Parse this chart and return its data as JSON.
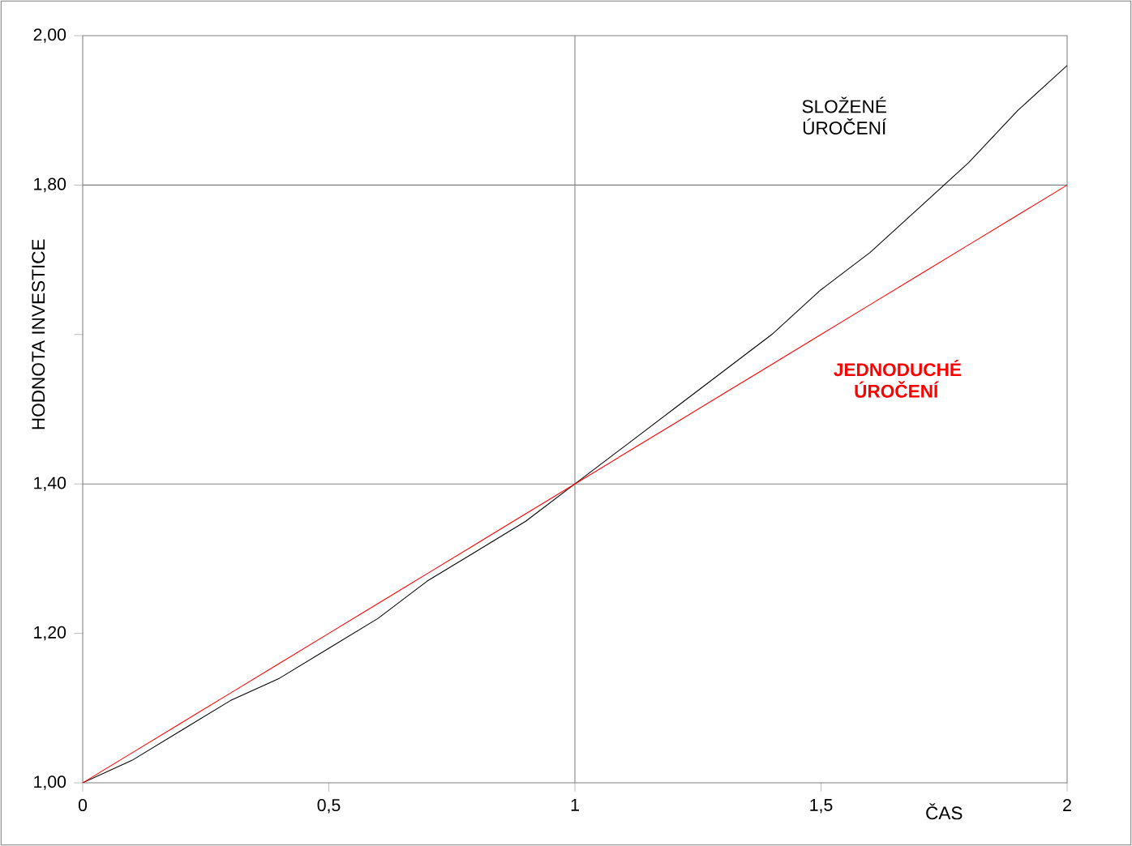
{
  "chart_data": {
    "type": "line",
    "xlabel": "ČAS",
    "ylabel": "HODNOTA INVESTICE",
    "x": [
      0,
      0.1,
      0.2,
      0.3,
      0.4,
      0.5,
      0.6,
      0.7,
      0.8,
      0.9,
      1,
      1.1,
      1.2,
      1.3,
      1.4,
      1.5,
      1.6,
      1.7,
      1.8,
      1.9,
      2
    ],
    "series": [
      {
        "name": "SLOŽENÉ ÚROČENÍ",
        "color": "#000000",
        "values": [
          1.0,
          1.03,
          1.07,
          1.11,
          1.14,
          1.18,
          1.22,
          1.27,
          1.31,
          1.35,
          1.4,
          1.45,
          1.5,
          1.55,
          1.6,
          1.66,
          1.71,
          1.77,
          1.83,
          1.9,
          1.96
        ]
      },
      {
        "name": "JEDNODUCHÉ ÚROČENÍ",
        "color": "#ff0000",
        "values": [
          1.0,
          1.04,
          1.08,
          1.12,
          1.16,
          1.2,
          1.24,
          1.28,
          1.32,
          1.36,
          1.4,
          1.44,
          1.48,
          1.52,
          1.56,
          1.6,
          1.64,
          1.68,
          1.72,
          1.76,
          1.8
        ]
      }
    ],
    "xlim": [
      0,
      2
    ],
    "xticks": [
      0,
      {
        "value": 0.5,
        "label": "0,5"
      },
      1,
      {
        "value": 1.5,
        "label": "1,5"
      },
      2
    ],
    "ylim": [
      1,
      2
    ],
    "yticks": [
      {
        "value": 1,
        "label": "1,00"
      },
      {
        "value": 1.2,
        "label": "1,20"
      },
      {
        "value": 1.4,
        "label": "1,40"
      },
      {
        "value": 1.6,
        "label": null
      },
      {
        "value": 1.8,
        "label": "1,80"
      },
      {
        "value": 2,
        "label": "2,00"
      }
    ],
    "ref_lines": [
      {
        "axis": "y",
        "value": 1.4,
        "color": "#808080"
      },
      {
        "axis": "y",
        "value": 1.8,
        "color": "#808080"
      },
      {
        "axis": "x",
        "value": 1,
        "color": "#808080"
      }
    ],
    "grid": false,
    "legend": false,
    "marker": "none",
    "line_style": "solid"
  }
}
